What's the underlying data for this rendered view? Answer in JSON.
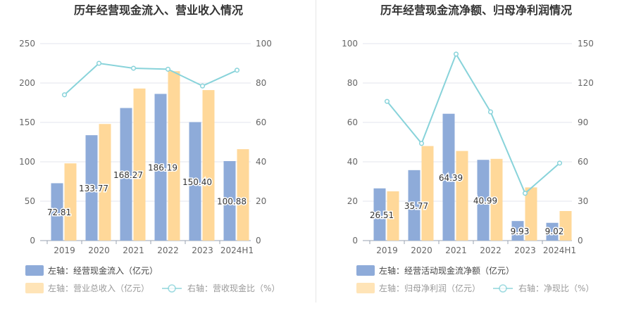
{
  "chart_data": [
    {
      "type": "bar",
      "title": "历年经营现金流入、营业收入情况",
      "categories": [
        "2019",
        "2020",
        "2021",
        "2022",
        "2023",
        "2024H1"
      ],
      "left_axis": {
        "min": 0,
        "max": 250,
        "ticks": [
          "0",
          "50",
          "100",
          "150",
          "200",
          "250"
        ]
      },
      "right_axis": {
        "min": 0,
        "max": 100,
        "ticks": [
          "0",
          "20",
          "40",
          "60",
          "80",
          "100"
        ]
      },
      "series": [
        {
          "name": "左轴：经营现金流入（亿元）",
          "kind": "bar",
          "axis": "left",
          "color": "#8eabd9",
          "values": [
            72.81,
            133.77,
            168.27,
            186.19,
            150.4,
            100.88
          ],
          "labels": [
            "72.81",
            "133.77",
            "168.27",
            "186.19",
            "150.40",
            "100.88"
          ]
        },
        {
          "name": "左轴：营业总收入（亿元）",
          "kind": "bar",
          "axis": "left",
          "color": "#ffd899",
          "values": [
            98,
            148,
            193,
            215,
            191,
            116
          ]
        },
        {
          "name": "右轴：营收现金比（%）",
          "kind": "line",
          "axis": "right",
          "color": "#88d3da",
          "values": [
            74,
            90,
            87.5,
            87,
            78.5,
            86.5
          ]
        }
      ]
    },
    {
      "type": "bar",
      "title": "历年经营现金流净额、归母净利润情况",
      "categories": [
        "2019",
        "2020",
        "2021",
        "2022",
        "2023",
        "2024H1"
      ],
      "left_axis": {
        "min": 0,
        "max": 100,
        "ticks": [
          "0",
          "20",
          "40",
          "60",
          "80",
          "100"
        ]
      },
      "right_axis": {
        "min": 0,
        "max": 150,
        "ticks": [
          "0",
          "30",
          "60",
          "90",
          "120",
          "150"
        ]
      },
      "series": [
        {
          "name": "左轴：经营活动现金流净额（亿元）",
          "kind": "bar",
          "axis": "left",
          "color": "#8eabd9",
          "values": [
            26.51,
            35.77,
            64.39,
            40.99,
            9.93,
            9.02
          ],
          "labels": [
            "26.51",
            "35.77",
            "64.39",
            "40.99",
            "9.93",
            "9.02"
          ]
        },
        {
          "name": "左轴：归母净利润（亿元）",
          "kind": "bar",
          "axis": "left",
          "color": "#ffd899",
          "values": [
            25,
            48,
            45.5,
            41.5,
            27,
            15
          ]
        },
        {
          "name": "右轴：净现比（%）",
          "kind": "line",
          "axis": "right",
          "color": "#88d3da",
          "values": [
            106,
            74,
            142,
            98,
            36,
            59
          ]
        }
      ]
    }
  ]
}
